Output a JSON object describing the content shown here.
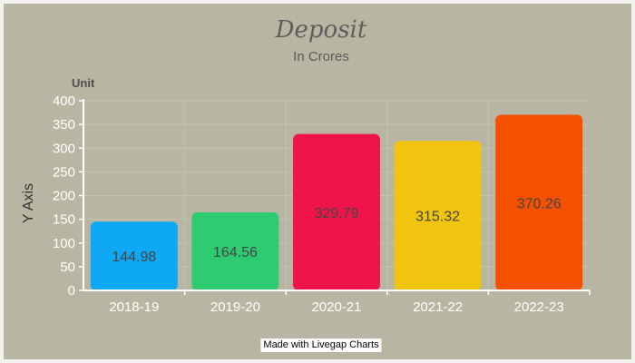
{
  "chart_data": {
    "type": "bar",
    "title": "Deposit",
    "subtitle": "In Crores",
    "unit_label": "Unit",
    "ylabel": "Y Axis",
    "xlabel": "",
    "categories": [
      "2018-19",
      "2019-20",
      "2020-21",
      "2021-22",
      "2022-23"
    ],
    "values": [
      144.98,
      164.56,
      329.79,
      315.32,
      370.26
    ],
    "data_labels": [
      "144.98",
      "164.56",
      "329.79",
      "315.32",
      "370.26"
    ],
    "colors": [
      "#0fa8f5",
      "#2ecc71",
      "#f0144a",
      "#f1c40f",
      "#f45000"
    ],
    "ylim": [
      0,
      400
    ],
    "yticks": [
      0,
      50,
      100,
      150,
      200,
      250,
      300,
      350,
      400
    ],
    "grid": true,
    "legend": "none"
  },
  "watermark": "Made with Livegap Charts"
}
